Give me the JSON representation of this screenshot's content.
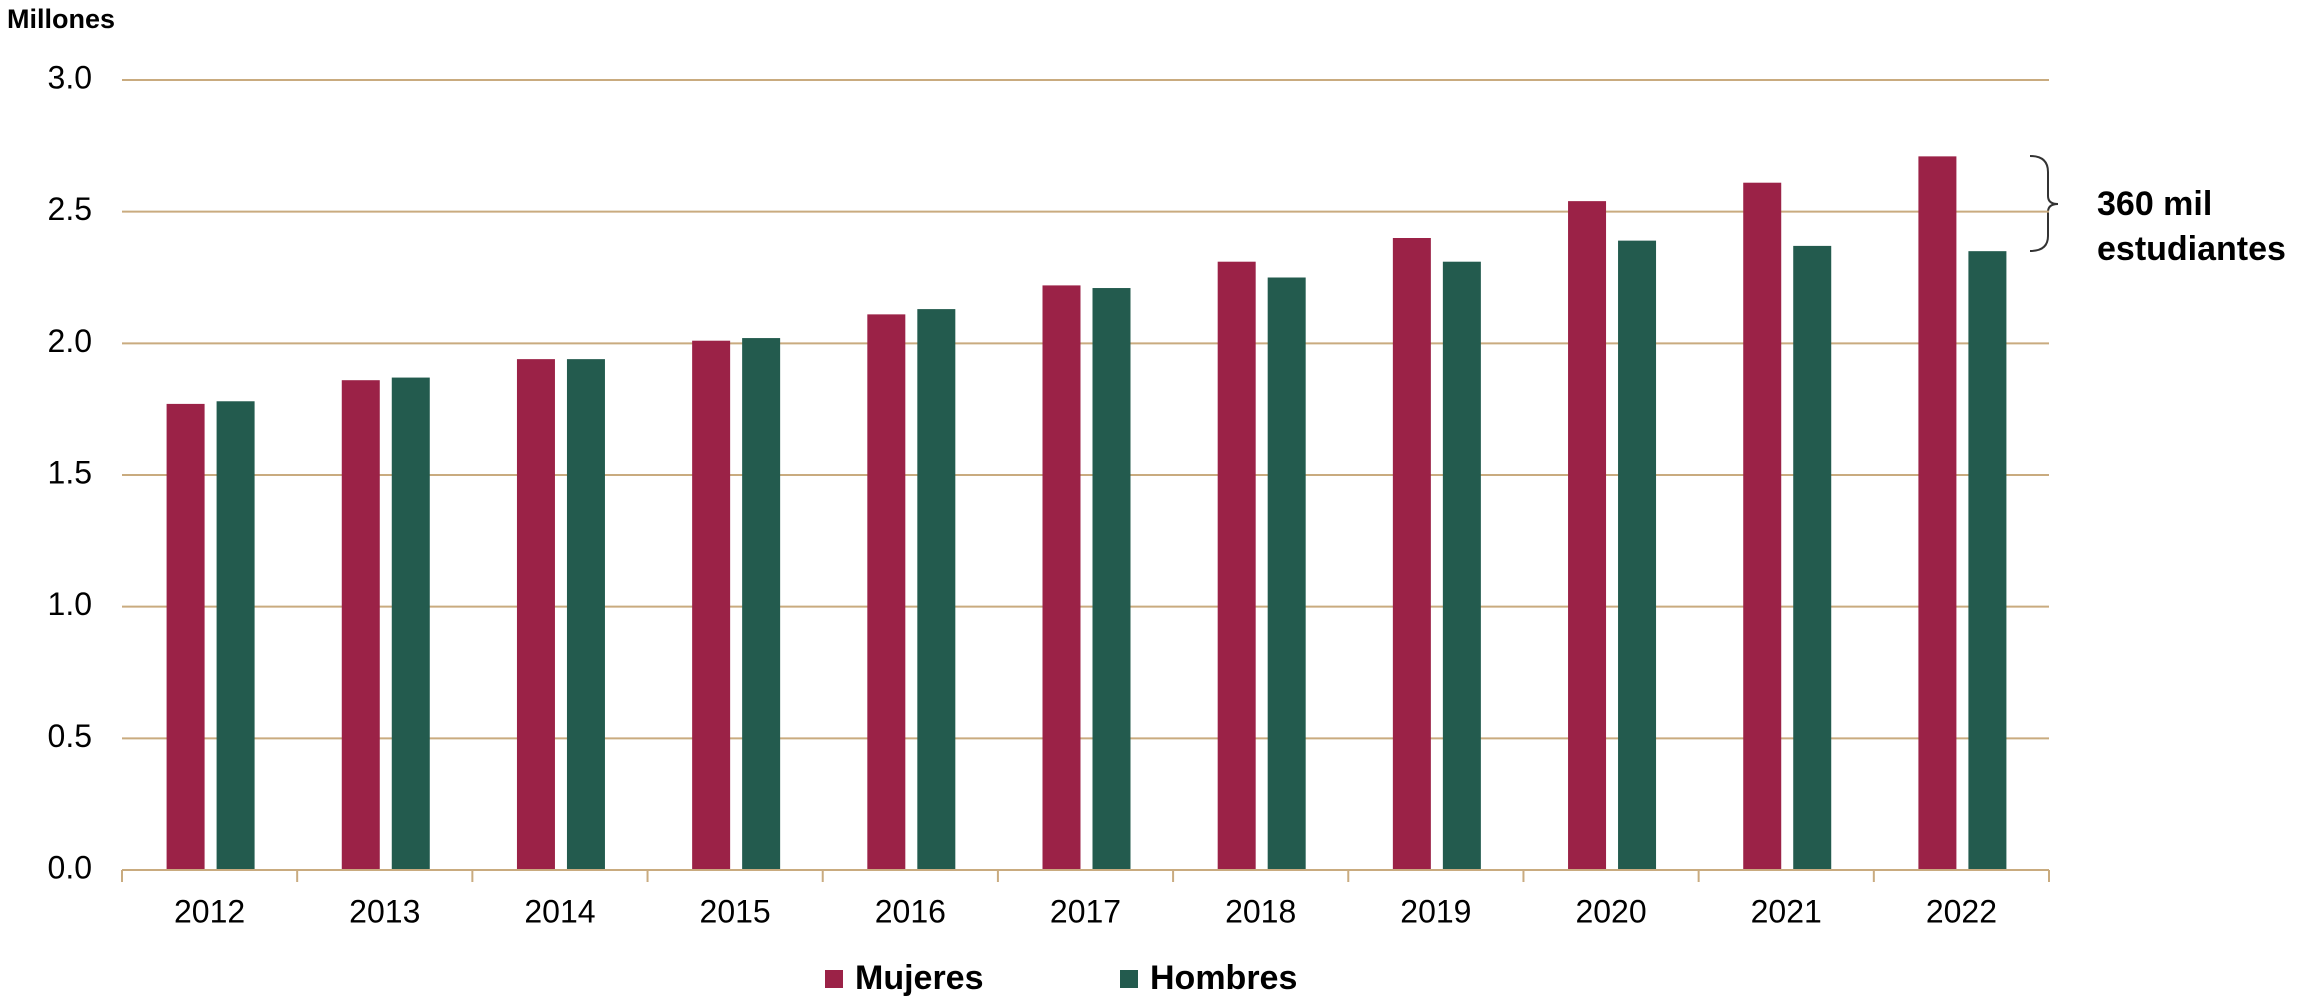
{
  "chart_data": {
    "type": "bar",
    "y_axis_label": "Millones",
    "categories": [
      "2012",
      "2013",
      "2014",
      "2015",
      "2016",
      "2017",
      "2018",
      "2019",
      "2020",
      "2021",
      "2022"
    ],
    "series": [
      {
        "name": "Mujeres",
        "color": "#9b2247",
        "values": [
          1.77,
          1.86,
          1.94,
          2.01,
          2.11,
          2.22,
          2.31,
          2.4,
          2.54,
          2.61,
          2.71
        ]
      },
      {
        "name": "Hombres",
        "color": "#235b4e",
        "values": [
          1.78,
          1.87,
          1.94,
          2.02,
          2.13,
          2.21,
          2.25,
          2.31,
          2.39,
          2.37,
          2.35
        ]
      }
    ],
    "ylim": [
      0,
      3
    ],
    "yticks": [
      {
        "value": 0,
        "label": "0.0"
      },
      0.5,
      {
        "value": 1,
        "label": "1.0"
      },
      1.5,
      {
        "value": 2,
        "label": "2.0"
      },
      2.5,
      {
        "value": 3,
        "label": "3.0"
      }
    ],
    "grid": true,
    "legend": "bottom",
    "annotation": [
      "360 mil",
      "estudiantes"
    ]
  }
}
